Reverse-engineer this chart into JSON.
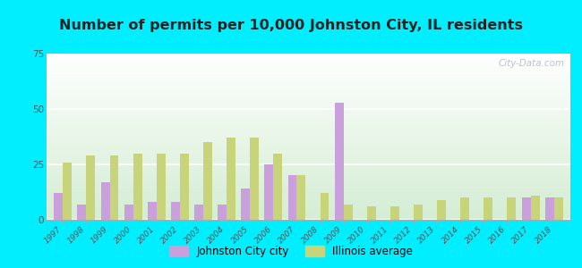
{
  "title": "Number of permits per 10,000 Johnston City, IL residents",
  "years": [
    1997,
    1998,
    1999,
    2000,
    2001,
    2002,
    2003,
    2004,
    2005,
    2006,
    2007,
    2008,
    2009,
    2010,
    2011,
    2012,
    2013,
    2014,
    2015,
    2016,
    2017,
    2018
  ],
  "johnston_city": [
    12,
    7,
    17,
    7,
    8,
    8,
    7,
    7,
    14,
    25,
    20,
    0,
    53,
    0,
    0,
    0,
    0,
    0,
    0,
    0,
    10,
    10
  ],
  "illinois_avg": [
    26,
    29,
    29,
    30,
    30,
    30,
    35,
    37,
    37,
    30,
    20,
    12,
    7,
    6,
    6,
    7,
    9,
    10,
    10,
    10,
    11,
    10
  ],
  "city_color": "#c9a0dc",
  "il_color": "#c8d47a",
  "outer_bg": "#00eeff",
  "plot_bg_top": "#ffffff",
  "plot_bg_bottom": "#d4edd4",
  "ylim": [
    0,
    75
  ],
  "yticks": [
    0,
    25,
    50,
    75
  ],
  "bar_width": 0.38,
  "legend_city": "Johnston City city",
  "legend_il": "Illinois average",
  "watermark": "City-Data.com",
  "title_color": "#222222",
  "tick_color": "#555555",
  "grid_color": "#ffffff",
  "title_fontsize": 11.5
}
